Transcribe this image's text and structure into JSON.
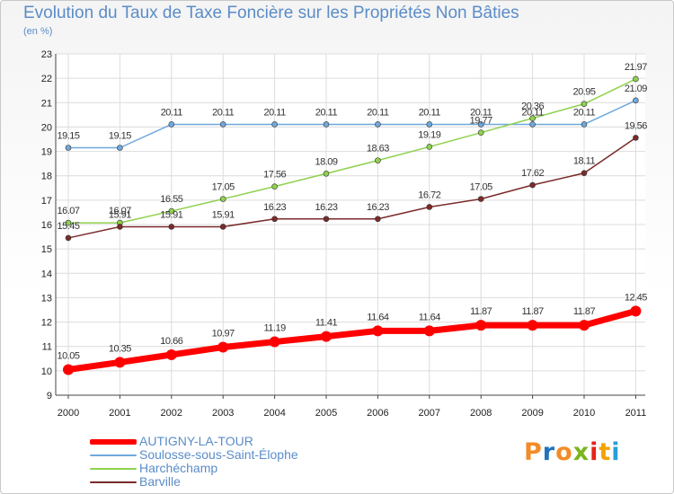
{
  "chart_data": {
    "type": "line",
    "title": "Evolution du Taux de Taxe Foncière sur les Propriétés Non Bâties",
    "unit": "(en %)",
    "categories": [
      "2000",
      "2001",
      "2002",
      "2003",
      "2004",
      "2005",
      "2006",
      "2007",
      "2008",
      "2009",
      "2010",
      "2011"
    ],
    "ylim": [
      9,
      23
    ],
    "yticks": [
      9,
      10,
      11,
      12,
      13,
      14,
      15,
      16,
      17,
      18,
      19,
      20,
      21,
      22,
      23
    ],
    "grid": true,
    "legend_position": "bottom-left",
    "series": [
      {
        "name": "AUTIGNY-LA-TOUR",
        "color": "#ff0000",
        "values": [
          10.05,
          10.35,
          10.66,
          10.97,
          11.19,
          11.41,
          11.64,
          11.64,
          11.87,
          11.87,
          11.87,
          12.45
        ],
        "labels": [
          "10.05",
          "10.35",
          "10.66",
          "10.97",
          "11.19",
          "11.41",
          "11.64",
          "11.64",
          "11.87",
          "11.87",
          "11.87",
          "12.45"
        ]
      },
      {
        "name": "Soulosse-sous-Saint-Élophe",
        "color": "#6fa8dc",
        "values": [
          19.15,
          19.15,
          20.11,
          20.11,
          20.11,
          20.11,
          20.11,
          20.11,
          20.11,
          20.11,
          20.11,
          21.09
        ],
        "labels": [
          "19.15",
          "19.15",
          "20.11",
          "20.11",
          "20.11",
          "20.11",
          "20.11",
          "20.11",
          "20.11",
          "20.11",
          "20.11",
          "21.09"
        ]
      },
      {
        "name": "Harchéchamp",
        "color": "#8fd14f",
        "values": [
          16.07,
          16.07,
          16.55,
          17.05,
          17.56,
          18.09,
          18.63,
          19.19,
          19.77,
          20.36,
          20.95,
          21.97
        ],
        "labels": [
          "16.07",
          "16.07",
          "16.55",
          "17.05",
          "17.56",
          "18.09",
          "18.63",
          "19.19",
          "19.77",
          "20.36",
          "20.95",
          "21.97"
        ]
      },
      {
        "name": "Barville",
        "color": "#7b2a2a",
        "values": [
          15.45,
          15.91,
          15.91,
          15.91,
          16.23,
          16.23,
          16.23,
          16.72,
          17.05,
          17.62,
          18.11,
          19.56
        ],
        "labels": [
          "15.45",
          "15.91",
          "15.91",
          "15.91",
          "16.23",
          "16.23",
          "16.23",
          "16.72",
          "17.05",
          "17.62",
          "18.11",
          "19.56"
        ]
      }
    ]
  },
  "logo": {
    "text": "Proxiti",
    "colors": [
      "#f28c28",
      "#1e73be",
      "#f28c28",
      "#7ab51d",
      "#e2231a",
      "#f5a200",
      "#2a9fd6"
    ]
  }
}
